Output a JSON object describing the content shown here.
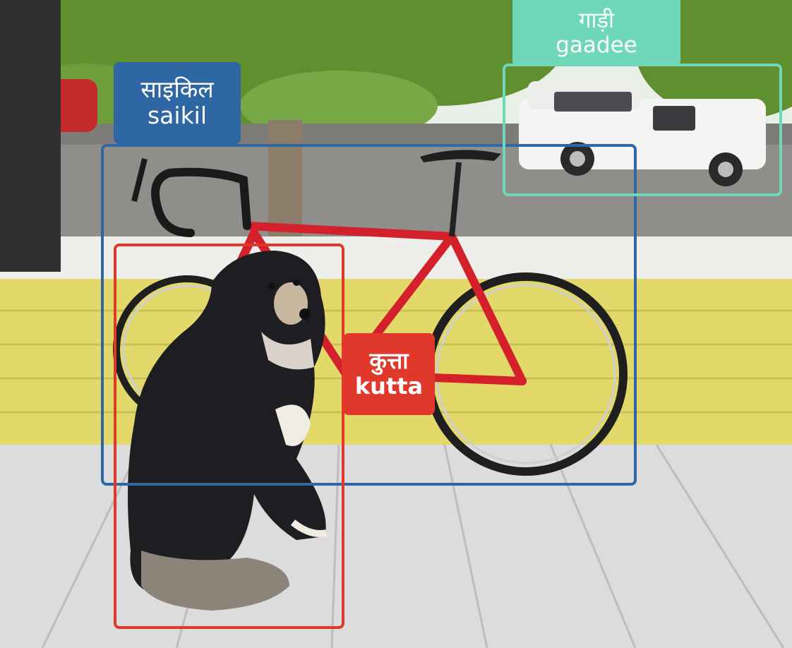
{
  "detections": {
    "bicycle": {
      "label_hindi": "साइकिल",
      "label_roman": "saikil",
      "color": "#2e67a3"
    },
    "car": {
      "label_hindi": "गाड़ी",
      "label_roman": "gaadee",
      "color": "#6fd8b8"
    },
    "dog": {
      "label_hindi": "कुत्ता",
      "label_roman": "kutta",
      "color": "#e0392b"
    }
  },
  "scene": {
    "sky_color": "#e8efe6",
    "foliage_color": "#5f8f2e",
    "road_color": "#8f8e8a",
    "wall_color": "#e3d96a",
    "floor_color": "#dcdcdc",
    "post_color": "#2f3131",
    "bike_frame_color": "#d3202a",
    "dog_color": "#1e1d22"
  }
}
